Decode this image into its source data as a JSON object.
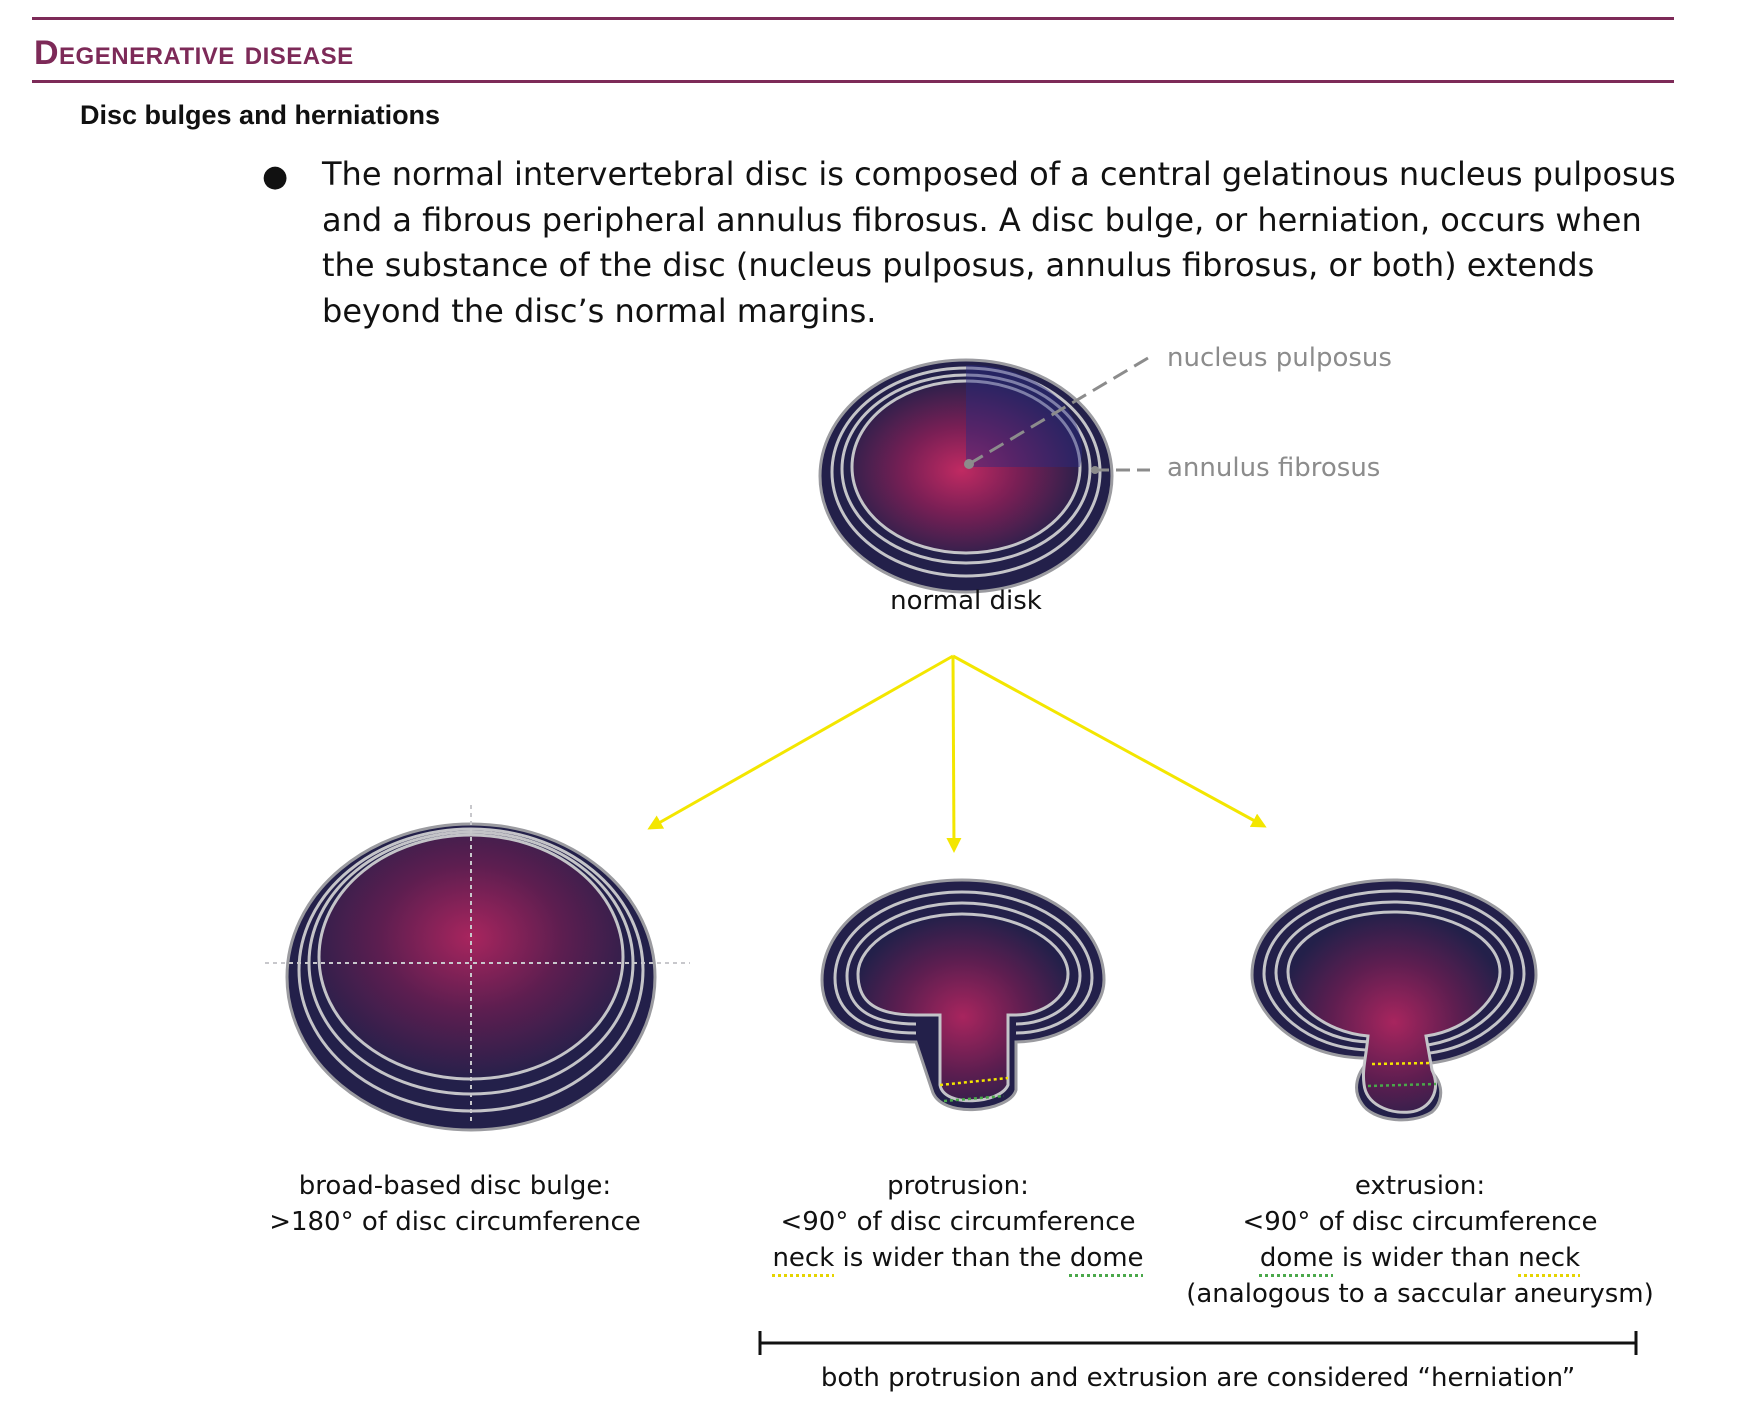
{
  "header": {
    "section_title": "Degenerative disease",
    "subheading": "Disc bulges and herniations"
  },
  "body": {
    "bullet": "The normal intervertebral disc is composed of a central gelatinous nucleus pulposus and a fibrous peripheral annulus fibrosus. A disc bulge, or herniation, occurs when the substance of the disc (nucleus pulposus, annulus fibrosus, or both) extends beyond the disc’s normal margins."
  },
  "figure": {
    "colors": {
      "disc_dark": "#23204a",
      "disc_core": "#a0245a",
      "ring": "#b8b8bc",
      "arrow": "#f3e600",
      "neck_line": "#f3e600",
      "dome_line": "#4aa84a",
      "accent": "#7d2a58"
    },
    "normal": {
      "callout_nucleus": "nucleus pulposus",
      "callout_annulus": "annulus fibrosus",
      "caption": "normal disk"
    },
    "bulge": {
      "caption_line1": "broad-based disc bulge:",
      "caption_line2": ">180° of disc circumference"
    },
    "protrusion": {
      "caption_line1": "protrusion:",
      "caption_line2": "<90° of disc circumference",
      "caption_line3_a": "neck",
      "caption_line3_b": " is wider than the ",
      "caption_line3_c": "dome"
    },
    "extrusion": {
      "caption_line1": "extrusion:",
      "caption_line2": "<90° of disc circumference",
      "caption_line3_a": "dome",
      "caption_line3_b": " is wider than ",
      "caption_line3_c": "neck",
      "caption_line4": "(analogous to a saccular aneurysm)"
    },
    "bracket_caption": "both protrusion and extrusion are considered “herniation”"
  }
}
